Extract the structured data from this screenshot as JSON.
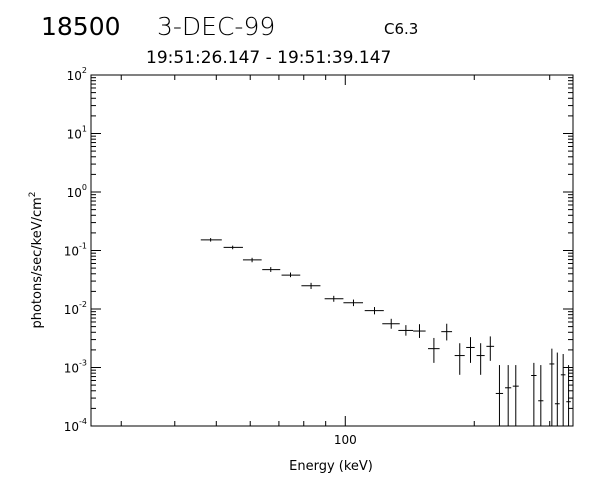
{
  "header": {
    "event_id": "18500",
    "date": "3-DEC-99",
    "flare_class": "C6.3",
    "time_range": "19:51:26.147 - 19:51:39.147"
  },
  "chart_data": {
    "type": "scatter",
    "xlabel": "Energy (keV)",
    "ylabel": "photons/sec/keV/cm",
    "ylabel_superscript": "2",
    "xscale": "log",
    "yscale": "log",
    "xlim": [
      25.5,
      340
    ],
    "ylim": [
      0.0001,
      100
    ],
    "x_tick_labels": [
      {
        "value": 100,
        "label": "100"
      }
    ],
    "y_tick_labels": [
      {
        "value": 0.0001,
        "base": "10",
        "exp": "-4"
      },
      {
        "value": 0.001,
        "base": "10",
        "exp": "-3"
      },
      {
        "value": 0.01,
        "base": "10",
        "exp": "-2"
      },
      {
        "value": 0.1,
        "base": "10",
        "exp": "-1"
      },
      {
        "value": 1,
        "base": "10",
        "exp": "0"
      },
      {
        "value": 10,
        "base": "10",
        "exp": "1"
      },
      {
        "value": 100,
        "base": "10",
        "exp": "2"
      }
    ],
    "grid": false,
    "points": [
      {
        "x": 48.5,
        "xlo": 46.0,
        "xhi": 51.5,
        "y": 0.152,
        "ylo": 0.142,
        "yhi": 0.163
      },
      {
        "x": 54.6,
        "xlo": 52.0,
        "xhi": 57.7,
        "y": 0.113,
        "ylo": 0.105,
        "yhi": 0.121
      },
      {
        "x": 60.6,
        "xlo": 57.7,
        "xhi": 63.8,
        "y": 0.069,
        "ylo": 0.063,
        "yhi": 0.075
      },
      {
        "x": 67.0,
        "xlo": 64.0,
        "xhi": 70.5,
        "y": 0.047,
        "ylo": 0.043,
        "yhi": 0.052
      },
      {
        "x": 74.5,
        "xlo": 71.0,
        "xhi": 78.5,
        "y": 0.038,
        "ylo": 0.035,
        "yhi": 0.042
      },
      {
        "x": 83.2,
        "xlo": 79.0,
        "xhi": 87.5,
        "y": 0.025,
        "ylo": 0.022,
        "yhi": 0.028
      },
      {
        "x": 94.0,
        "xlo": 89.5,
        "xhi": 99.0,
        "y": 0.015,
        "ylo": 0.0133,
        "yhi": 0.0168
      },
      {
        "x": 104.5,
        "xlo": 99.0,
        "xhi": 110.0,
        "y": 0.0128,
        "ylo": 0.0112,
        "yhi": 0.0145
      },
      {
        "x": 117.0,
        "xlo": 111.0,
        "xhi": 123.0,
        "y": 0.0094,
        "ylo": 0.0081,
        "yhi": 0.0108
      },
      {
        "x": 128.0,
        "xlo": 122.0,
        "xhi": 134.0,
        "y": 0.0056,
        "ylo": 0.0046,
        "yhi": 0.0068
      },
      {
        "x": 138.5,
        "xlo": 133.0,
        "xhi": 144.0,
        "y": 0.0043,
        "ylo": 0.0035,
        "yhi": 0.0053
      },
      {
        "x": 149.0,
        "xlo": 144.0,
        "xhi": 154.0,
        "y": 0.0042,
        "ylo": 0.0032,
        "yhi": 0.0055
      },
      {
        "x": 161.0,
        "xlo": 156.0,
        "xhi": 166.0,
        "y": 0.0021,
        "ylo": 0.0012,
        "yhi": 0.0032
      },
      {
        "x": 172.5,
        "xlo": 167.5,
        "xhi": 177.5,
        "y": 0.0041,
        "ylo": 0.0029,
        "yhi": 0.0056
      },
      {
        "x": 185.0,
        "xlo": 180.0,
        "xhi": 190.0,
        "y": 0.0016,
        "ylo": 0.00075,
        "yhi": 0.0026
      },
      {
        "x": 196.0,
        "xlo": 191.5,
        "xhi": 200.5,
        "y": 0.0022,
        "ylo": 0.0012,
        "yhi": 0.0033
      },
      {
        "x": 207.0,
        "xlo": 202.5,
        "xhi": 211.5,
        "y": 0.0016,
        "ylo": 0.00075,
        "yhi": 0.0026
      },
      {
        "x": 218.0,
        "xlo": 213.5,
        "xhi": 222.5,
        "y": 0.0023,
        "ylo": 0.0013,
        "yhi": 0.0034
      },
      {
        "x": 229.0,
        "xlo": 224.5,
        "xhi": 233.5,
        "y": 0.00036,
        "ylo": 0.0001,
        "yhi": 0.0011
      },
      {
        "x": 240.0,
        "xlo": 236.0,
        "xhi": 244.0,
        "y": 0.00045,
        "ylo": 0.0001,
        "yhi": 0.0011
      },
      {
        "x": 250.0,
        "xlo": 246.0,
        "xhi": 254.0,
        "y": 0.00048,
        "ylo": 0.0001,
        "yhi": 0.0011
      },
      {
        "x": 275.5,
        "xlo": 271.5,
        "xhi": 279.5,
        "y": 0.00073,
        "ylo": 0.0001,
        "yhi": 0.0012
      },
      {
        "x": 286.0,
        "xlo": 282.0,
        "xhi": 290.0,
        "y": 0.00027,
        "ylo": 0.0001,
        "yhi": 0.0011
      },
      {
        "x": 303.5,
        "xlo": 299.5,
        "xhi": 307.5,
        "y": 0.00115,
        "ylo": 0.0001,
        "yhi": 0.0021
      },
      {
        "x": 312.5,
        "xlo": 308.5,
        "xhi": 316.5,
        "y": 0.00024,
        "ylo": 0.0001,
        "yhi": 0.0018
      },
      {
        "x": 322.5,
        "xlo": 318.5,
        "xhi": 326.5,
        "y": 0.00075,
        "ylo": 0.0001,
        "yhi": 0.0017
      },
      {
        "x": 332.0,
        "xlo": 328.0,
        "xhi": 336.0,
        "y": 0.00026,
        "ylo": 0.0001,
        "yhi": 0.0011
      }
    ]
  }
}
